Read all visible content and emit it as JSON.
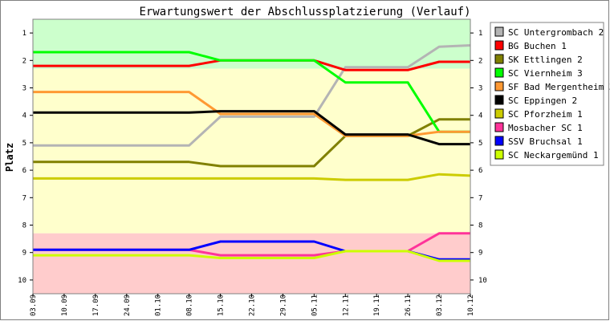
{
  "chart_data": {
    "type": "line",
    "title": "Erwartungswert der Abschlussplatzierung (Verlauf)",
    "ylabel": "Platz",
    "xlabel": "",
    "categories": [
      "03.09",
      "10.09",
      "17.09",
      "24.09",
      "01.10",
      "08.10",
      "15.10",
      "22.10",
      "29.10",
      "05.11",
      "12.11",
      "19.11",
      "26.11",
      "03.12",
      "10.12"
    ],
    "ylim": [
      10.5,
      0.5
    ],
    "y_ticks": [
      "1",
      "2",
      "3",
      "4",
      "5",
      "6",
      "7",
      "8",
      "9",
      "10"
    ],
    "grid": false,
    "legend_position": "right",
    "zones": [
      {
        "from": 0.5,
        "to": 2.3,
        "color": "#ccffcc"
      },
      {
        "from": 2.3,
        "to": 8.3,
        "color": "#ffffcc"
      },
      {
        "from": 8.3,
        "to": 10.5,
        "color": "#ffcccc"
      }
    ],
    "series": [
      {
        "name": "SC Untergrombach 2",
        "color": "#b4b4b4",
        "values": [
          5.1,
          5.1,
          5.1,
          5.1,
          5.1,
          5.1,
          4.05,
          4.05,
          4.05,
          4.05,
          2.25,
          2.25,
          2.25,
          1.5,
          1.45
        ]
      },
      {
        "name": "BG Buchen 1",
        "color": "#ff0000",
        "values": [
          2.2,
          2.2,
          2.2,
          2.2,
          2.2,
          2.2,
          2.0,
          2.0,
          2.0,
          2.0,
          2.35,
          2.35,
          2.35,
          2.05,
          2.05
        ]
      },
      {
        "name": "SK Ettlingen 2",
        "color": "#808000",
        "values": [
          5.7,
          5.7,
          5.7,
          5.7,
          5.7,
          5.7,
          5.85,
          5.85,
          5.85,
          5.85,
          4.75,
          4.75,
          4.75,
          4.15,
          4.15
        ]
      },
      {
        "name": "SC Viernheim 3",
        "color": "#00ff00",
        "values": [
          1.7,
          1.7,
          1.7,
          1.7,
          1.7,
          1.7,
          2.0,
          2.0,
          2.0,
          2.0,
          2.8,
          2.8,
          2.8,
          4.6,
          4.6
        ]
      },
      {
        "name": "SF Bad Mergentheim 3",
        "color": "#ff9933",
        "values": [
          3.15,
          3.15,
          3.15,
          3.15,
          3.15,
          3.15,
          3.95,
          3.95,
          3.95,
          3.95,
          4.75,
          4.75,
          4.75,
          4.6,
          4.6
        ]
      },
      {
        "name": "SC Eppingen 2",
        "color": "#000000",
        "values": [
          3.9,
          3.9,
          3.9,
          3.9,
          3.9,
          3.9,
          3.85,
          3.85,
          3.85,
          3.85,
          4.7,
          4.7,
          4.7,
          5.05,
          5.05
        ]
      },
      {
        "name": "SC Pforzheim 1",
        "color": "#cccc00",
        "values": [
          6.3,
          6.3,
          6.3,
          6.3,
          6.3,
          6.3,
          6.3,
          6.3,
          6.3,
          6.3,
          6.35,
          6.35,
          6.35,
          6.15,
          6.2
        ]
      },
      {
        "name": "Mosbacher SC 1",
        "color": "#ff3399",
        "values": [
          8.9,
          8.9,
          8.9,
          8.9,
          8.9,
          8.9,
          9.1,
          9.1,
          9.1,
          9.1,
          8.95,
          8.95,
          8.95,
          8.3,
          8.3
        ]
      },
      {
        "name": "SSV Bruchsal 1",
        "color": "#0000ff",
        "values": [
          8.9,
          8.9,
          8.9,
          8.9,
          8.9,
          8.9,
          8.6,
          8.6,
          8.6,
          8.6,
          8.95,
          8.95,
          8.95,
          9.25,
          9.25
        ]
      },
      {
        "name": "SC Neckargemünd 1",
        "color": "#ccff00",
        "values": [
          9.1,
          9.1,
          9.1,
          9.1,
          9.1,
          9.1,
          9.2,
          9.2,
          9.2,
          9.2,
          8.95,
          8.95,
          8.95,
          9.3,
          9.3
        ]
      }
    ]
  }
}
